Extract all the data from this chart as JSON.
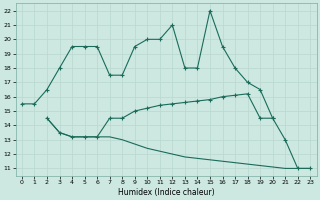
{
  "xlabel": "Humidex (Indice chaleur)",
  "bg_color": "#cce8e0",
  "grid_color": "#b8d8d0",
  "line_color": "#1a6b5a",
  "xlim": [
    -0.5,
    23.5
  ],
  "ylim": [
    10.5,
    22.5
  ],
  "xticks": [
    0,
    1,
    2,
    3,
    4,
    5,
    6,
    7,
    8,
    9,
    10,
    11,
    12,
    13,
    14,
    15,
    16,
    17,
    18,
    19,
    20,
    21,
    22,
    23
  ],
  "yticks": [
    11,
    12,
    13,
    14,
    15,
    16,
    17,
    18,
    19,
    20,
    21,
    22
  ],
  "line1_x": [
    0,
    1,
    2,
    3,
    4,
    5,
    6,
    7,
    8,
    9,
    10,
    11,
    12,
    13,
    14,
    15,
    16,
    17,
    18,
    19,
    20,
    21,
    22,
    23
  ],
  "line1_y": [
    15.5,
    15.5,
    16.5,
    18.0,
    19.5,
    19.5,
    19.5,
    17.5,
    17.5,
    19.5,
    20.0,
    20.0,
    21.0,
    18.0,
    18.0,
    22.0,
    19.5,
    18.0,
    17.0,
    16.5,
    14.5,
    13.0,
    11.0,
    11.0
  ],
  "line2_x": [
    2,
    3,
    4,
    5,
    6,
    7,
    8,
    9,
    10,
    11,
    12,
    13,
    14,
    15,
    16,
    17,
    18,
    19,
    20
  ],
  "line2_y": [
    14.5,
    13.5,
    13.2,
    13.2,
    13.2,
    14.5,
    14.5,
    15.0,
    15.2,
    15.4,
    15.5,
    15.6,
    15.7,
    15.8,
    16.0,
    16.1,
    16.2,
    14.5,
    14.5
  ],
  "line3_x": [
    2,
    3,
    4,
    5,
    6,
    7,
    8,
    9,
    10,
    11,
    12,
    13,
    14,
    15,
    16,
    17,
    18,
    19,
    20,
    21,
    22,
    23
  ],
  "line3_y": [
    14.5,
    13.5,
    13.2,
    13.2,
    13.2,
    13.2,
    13.0,
    12.7,
    12.4,
    12.2,
    12.0,
    11.8,
    11.7,
    11.6,
    11.5,
    11.4,
    11.3,
    11.2,
    11.1,
    11.0,
    11.0,
    11.0
  ]
}
